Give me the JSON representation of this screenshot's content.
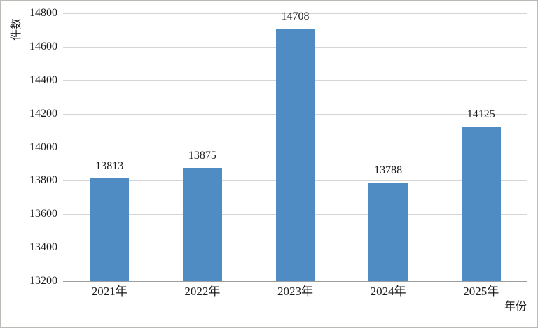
{
  "chart_data": {
    "type": "bar",
    "categories": [
      "2021年",
      "2022年",
      "2023年",
      "2024年",
      "2025年"
    ],
    "values": [
      13813,
      13875,
      14708,
      13788,
      14125
    ],
    "title": "",
    "xlabel": "年份",
    "ylabel": "件数",
    "ylim": [
      13200,
      14800
    ],
    "ytick_step": 200,
    "yticks": [
      "14800",
      "14600",
      "14400",
      "14200",
      "14000",
      "13800",
      "13600",
      "13400",
      "13200"
    ],
    "grid": true,
    "legend": "none",
    "bar_color": "#4e8cc3",
    "gridline_color": "#d5d5d5",
    "axis_color": "#9c9c9c",
    "text_color": "#1c1c1c",
    "border_color": "#bdb9b4"
  }
}
